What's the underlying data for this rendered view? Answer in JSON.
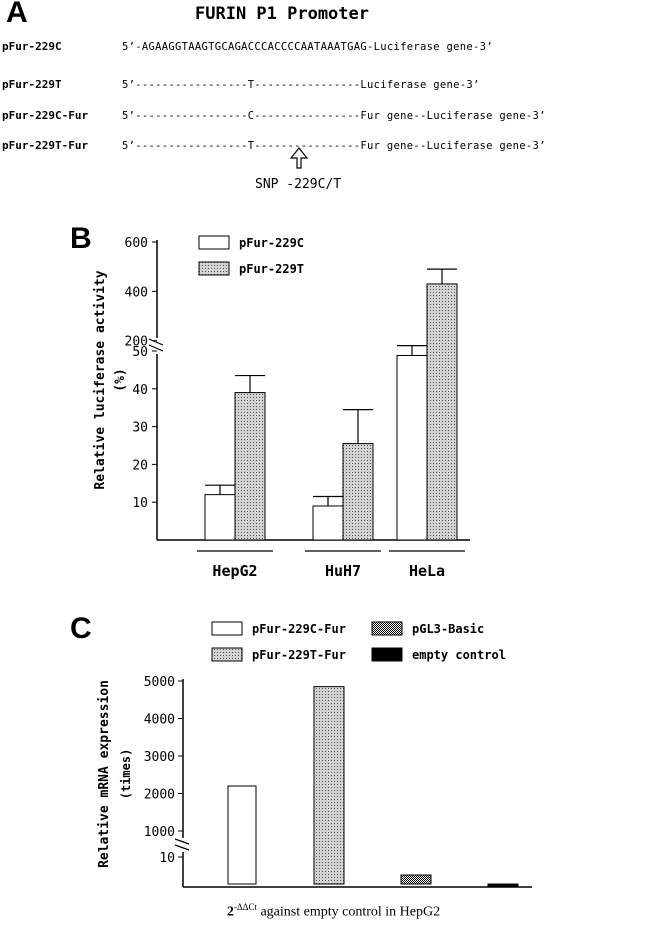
{
  "panel_a": {
    "letter": "A",
    "title": "FURIN P1 Promoter",
    "rows": [
      {
        "construct": "pFur-229C",
        "prefix": "5’-AGAAGGTAAGTGCAGACCCACCCCAATAAATGAG-",
        "suffix": "Luciferase gene-3’"
      },
      {
        "construct": "pFur-229T",
        "prefix": "5’-----------------T----------------",
        "suffix": "Luciferase gene-3’"
      },
      {
        "construct": "pFur-229C-Fur",
        "prefix": "5’-----------------C----------------",
        "suffix": "Fur gene--Luciferase gene-3’"
      },
      {
        "construct": "pFur-229T-Fur",
        "prefix": "5’-----------------T----------------",
        "suffix": "Fur gene--Luciferase gene-3’"
      }
    ],
    "snp_label": "SNP -229C/T",
    "arrow_icon": "up-arrow-icon"
  },
  "chart_data": [
    {
      "panel": "B",
      "type": "bar",
      "ylabel": "Relative luciferase activity",
      "ylabel2": "(%)",
      "categories": [
        "HepG2",
        "HuH7",
        "HeLa"
      ],
      "series": [
        {
          "name": "pFur-229C",
          "values": [
            12,
            9,
            140
          ],
          "errors": [
            2.5,
            2.5,
            40
          ]
        },
        {
          "name": "pFur-229T",
          "values": [
            39,
            25.5,
            430
          ],
          "errors": [
            4.5,
            9,
            60
          ]
        }
      ],
      "yticks_lower": [
        10,
        20,
        30,
        40,
        50
      ],
      "yticks_upper": [
        200,
        400,
        600
      ],
      "broken_axis": true,
      "legend": "top-left"
    },
    {
      "panel": "C",
      "type": "bar",
      "ylabel": "Relative mRNA expression",
      "ylabel2": "(times)",
      "categories": [
        "pFur-229C-Fur",
        "pFur-229T-Fur",
        "pGL3-Basic",
        "empty control"
      ],
      "values": [
        2200,
        4850,
        4,
        1
      ],
      "yticks_lower": [
        10
      ],
      "yticks_upper": [
        1000,
        2000,
        3000,
        4000,
        5000
      ],
      "broken_axis": true,
      "legend": "top"
    }
  ],
  "panel_b": {
    "letter": "B"
  },
  "panel_c": {
    "letter": "C"
  },
  "caption": {
    "base": "2",
    "superscript": "-ΔΔCt",
    "text": " against empty control in HepG2"
  }
}
